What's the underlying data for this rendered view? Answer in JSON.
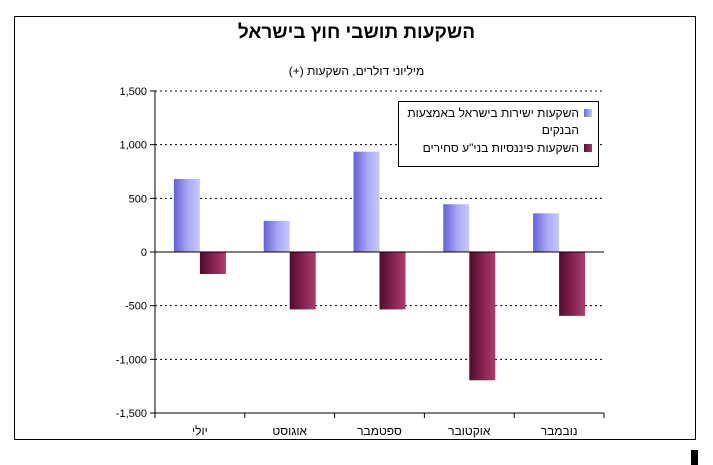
{
  "chart_data": {
    "type": "bar",
    "title": "השקעות תושבי חוץ בישראל",
    "subtitle": "מיליוני דולרים, השקעות (+)",
    "categories": [
      "יולי",
      "אוגוסט",
      "ספטמבר",
      "אוקטובר",
      "נובמבר"
    ],
    "series": [
      {
        "name": "השקעות ישירות בישראל באמצעות הבנקים",
        "values": [
          680,
          290,
          935,
          445,
          360
        ]
      },
      {
        "name": "השקעות פיננסיות בני\"ע סחירים",
        "values": [
          -205,
          -535,
          -535,
          -1195,
          -595
        ]
      }
    ],
    "ylim": [
      -1500,
      1500
    ],
    "yticks": [
      -1500,
      -1000,
      -500,
      0,
      500,
      1000,
      1500
    ],
    "ytick_labels": [
      "-1,500",
      "-1,000",
      "-500",
      "0",
      "500",
      "1,000",
      "1,500"
    ],
    "grid": true,
    "legend_position": "top-right",
    "colors": {
      "series1": "#9a9af0",
      "series2": "#8b2350",
      "grid": "#000000"
    }
  }
}
